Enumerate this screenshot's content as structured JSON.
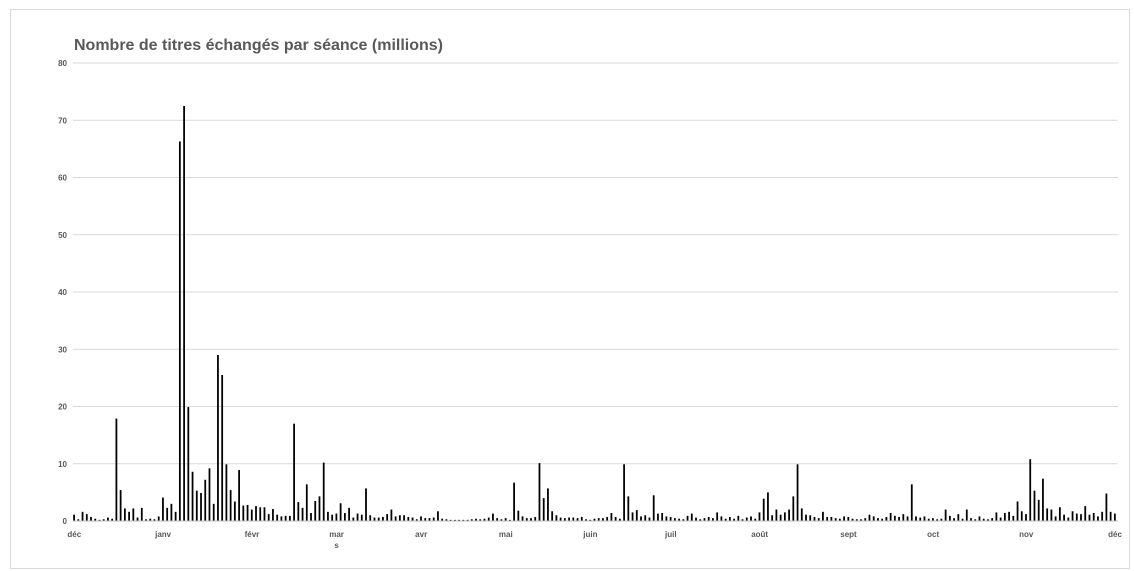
{
  "chart_data": {
    "type": "bar",
    "title": "Nombre de titres échangés par séance (millions)",
    "xlabel": "",
    "ylabel": "",
    "ylim": [
      0,
      80
    ],
    "yticks": [
      "0",
      "10",
      "20",
      "30",
      "40",
      "50",
      "60",
      "70",
      "80"
    ],
    "grid": true,
    "legend": "none",
    "bar_color": "#000000",
    "grid_color": "#d9d9d9",
    "title_color": "#595959",
    "month_labels": [
      "déc",
      "janv",
      "févr",
      "mar\ns",
      "avr",
      "mai",
      "juin",
      "juil",
      "août",
      "sept",
      "oct",
      "nov",
      "déc"
    ],
    "month_label_session_index": [
      0,
      21,
      42,
      62,
      82,
      102,
      122,
      141,
      162,
      183,
      203,
      225,
      246
    ],
    "values": [
      1.1,
      0.3,
      1.6,
      1.2,
      0.7,
      0.4,
      0.2,
      0.3,
      0.6,
      0.4,
      17.9,
      5.4,
      2.2,
      1.6,
      2.2,
      0.6,
      2.3,
      0.3,
      0.4,
      0.3,
      0.8,
      4.1,
      2.3,
      3.0,
      1.6,
      66.3,
      72.5,
      19.9,
      8.6,
      5.3,
      4.9,
      7.2,
      9.2,
      3.0,
      29.0,
      25.5,
      9.9,
      5.4,
      3.4,
      8.9,
      2.7,
      2.8,
      2.0,
      2.6,
      2.4,
      2.4,
      1.2,
      2.1,
      1.1,
      0.8,
      0.9,
      0.9,
      17.0,
      3.3,
      2.3,
      6.4,
      1.4,
      3.5,
      4.3,
      10.2,
      1.6,
      1.1,
      1.3,
      3.1,
      1.4,
      2.3,
      0.6,
      1.3,
      1.1,
      5.7,
      1.0,
      0.6,
      0.6,
      0.7,
      1.2,
      2.0,
      0.8,
      1.0,
      1.0,
      0.7,
      0.6,
      0.3,
      0.8,
      0.5,
      0.5,
      0.6,
      1.7,
      0.4,
      0.3,
      0.2,
      0.2,
      0.2,
      0.2,
      0.2,
      0.3,
      0.4,
      0.3,
      0.4,
      0.6,
      1.3,
      0.5,
      0.3,
      0.5,
      0.2,
      6.7,
      1.8,
      0.8,
      0.5,
      0.5,
      0.7,
      10.1,
      4.0,
      5.7,
      1.7,
      1.0,
      0.6,
      0.5,
      0.6,
      0.6,
      0.5,
      0.7,
      0.3,
      0.2,
      0.4,
      0.5,
      0.5,
      0.7,
      1.4,
      0.7,
      0.4,
      9.9,
      4.3,
      1.5,
      1.9,
      0.8,
      1.0,
      0.6,
      4.5,
      1.3,
      1.4,
      0.8,
      0.7,
      0.5,
      0.4,
      0.3,
      0.9,
      1.3,
      0.6,
      0.3,
      0.5,
      0.7,
      0.5,
      1.5,
      0.8,
      0.4,
      0.7,
      0.4,
      0.9,
      0.3,
      0.6,
      0.8,
      0.4,
      1.5,
      3.9,
      5.0,
      1.0,
      2.0,
      1.1,
      1.5,
      2.0,
      4.3,
      9.9,
      2.2,
      1.1,
      1.0,
      0.7,
      0.5,
      1.6,
      0.7,
      0.7,
      0.5,
      0.4,
      0.8,
      0.7,
      0.4,
      0.3,
      0.3,
      0.5,
      1.1,
      0.8,
      0.5,
      0.4,
      0.7,
      1.4,
      0.9,
      0.7,
      1.2,
      0.8,
      6.4,
      0.8,
      0.6,
      0.8,
      0.4,
      0.5,
      0.3,
      0.4,
      2.0,
      0.9,
      0.5,
      1.2,
      0.4,
      2.0,
      0.5,
      0.3,
      0.8,
      0.4,
      0.3,
      0.5,
      1.5,
      0.6,
      1.4,
      1.6,
      0.9,
      3.4,
      1.7,
      1.2,
      10.8,
      5.3,
      3.7,
      7.4,
      2.2,
      2.0,
      0.8,
      2.4,
      1.1,
      0.6,
      1.7,
      1.3,
      1.2,
      2.6,
      1.1,
      1.4,
      0.8,
      1.6,
      4.8,
      1.6,
      1.3
    ]
  }
}
